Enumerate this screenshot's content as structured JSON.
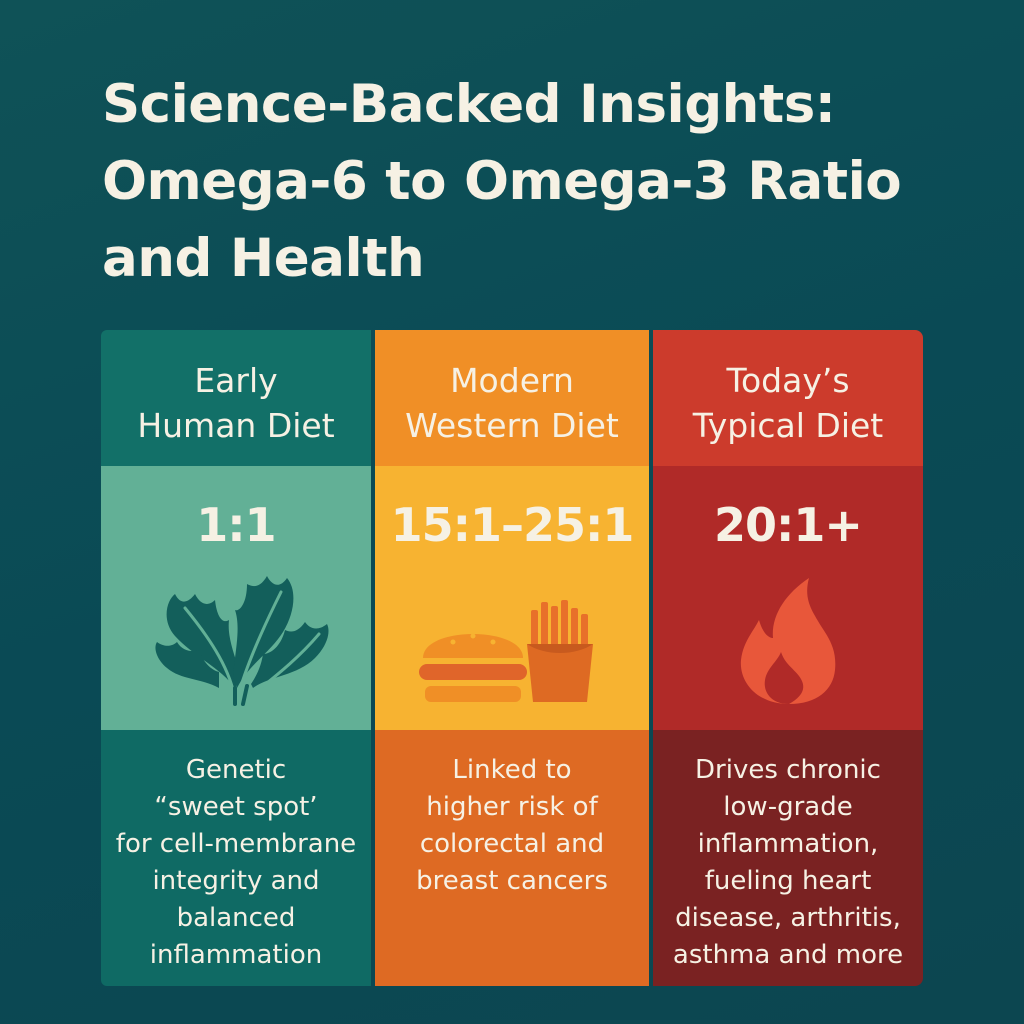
{
  "title": {
    "lines": [
      "Science-Backed Insights:",
      "Omega-6 to Omega-3 Ratio",
      "and Health"
    ]
  },
  "columns": [
    {
      "heading": [
        "Early",
        "Human Diet"
      ],
      "ratio": "1:1",
      "icon": "leaves-icon",
      "description": [
        "Genetic",
        "“sweet spot’",
        "for cell-membrane",
        "integrity and",
        "balanced",
        "inflammation"
      ]
    },
    {
      "heading": [
        "Modern",
        "Western Diet"
      ],
      "ratio": "15:1–25:1",
      "icon": "burger-fries-icon",
      "description": [
        "Linked to",
        "higher risk of",
        "colorectal and",
        "breast cancers"
      ]
    },
    {
      "heading": [
        "Today’s",
        "Typical Diet"
      ],
      "ratio": "20:1+",
      "icon": "flame-icon",
      "description": [
        "Drives chronic",
        "low-grade",
        "inflammation,",
        "fueling heart",
        "disease, arthritis,",
        "asthma and more"
      ]
    }
  ],
  "colors": {
    "background": "#0c4a52",
    "text": "#f6f1e4",
    "early": "#127068",
    "modern": "#f08f26",
    "today": "#cc3b2c"
  }
}
